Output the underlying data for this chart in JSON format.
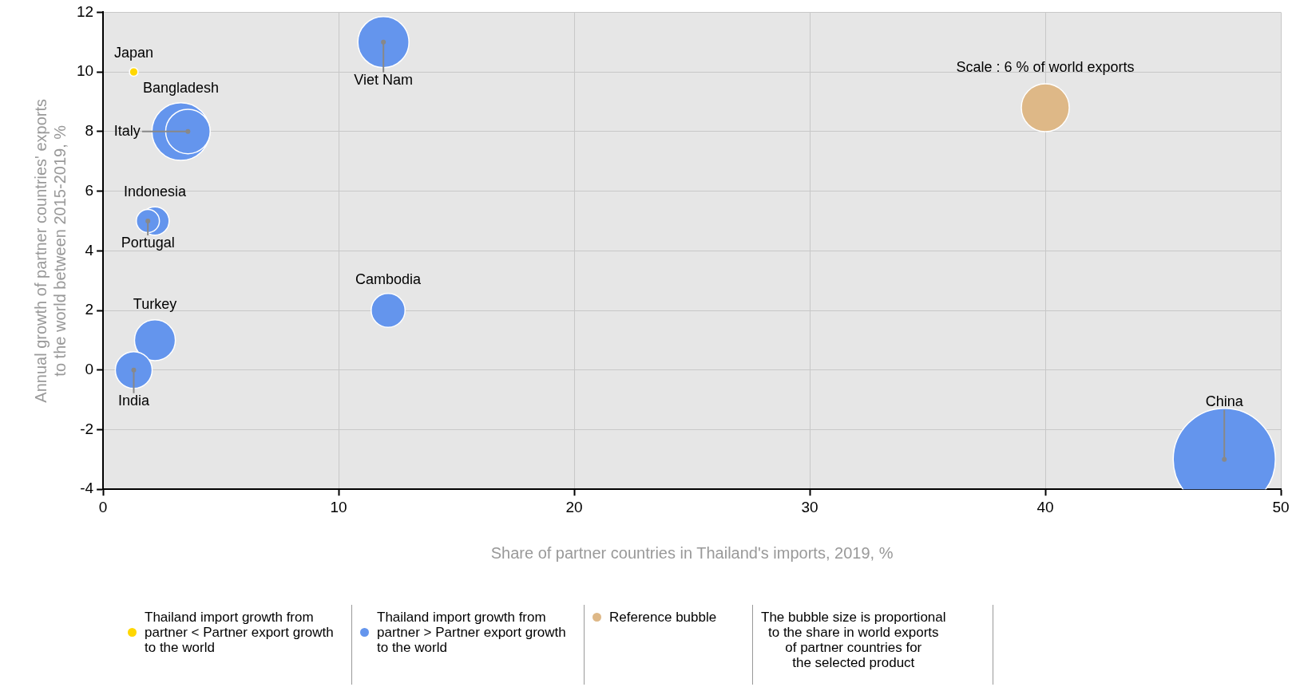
{
  "chart_data": {
    "type": "bubble",
    "xlabel": "Share of partner countries in Thailand's imports, 2019, %",
    "ylabel": "Annual growth of partner countries' exports\nto the world between 2015-2019, %",
    "xlim": [
      0,
      50
    ],
    "xticks": [
      0,
      10,
      20,
      30,
      40,
      50
    ],
    "ylim": [
      -4,
      12
    ],
    "yticks": [
      -4,
      -2,
      0,
      2,
      4,
      6,
      8,
      10,
      12
    ],
    "grid": true,
    "legend": "bottom",
    "series": [
      {
        "name": "Thailand import growth from partner < Partner export growth to the world",
        "color": "#ffd700",
        "x": [
          1.3
        ],
        "values": [
          10
        ],
        "sizes": [
          0.007
        ]
      },
      {
        "name": "Thailand import growth from partner > Partner export growth to the world",
        "color": "#6495ed",
        "x": [
          3.3,
          3.6,
          2.2,
          1.9,
          11.9,
          12.1,
          2.2,
          1.3,
          47.6
        ],
        "values": [
          8,
          8,
          5,
          5,
          11,
          2,
          1,
          0,
          -3
        ],
        "sizes": [
          0.32,
          0.19,
          0.077,
          0.051,
          0.25,
          0.11,
          0.16,
          0.13,
          1
        ]
      },
      {
        "name": "Reference bubble",
        "color": "#deb887",
        "x": [
          40
        ],
        "values": [
          8.8
        ],
        "sizes": [
          0.22
        ]
      }
    ],
    "annotations": [
      {
        "text": "Japan",
        "x": 1.3,
        "y": 10
      },
      {
        "text": "Bangladesh",
        "x": 3.3,
        "y": 8
      },
      {
        "text": "Italy",
        "x": 3.6,
        "y": 8
      },
      {
        "text": "Indonesia",
        "x": 2.2,
        "y": 5
      },
      {
        "text": "Portugal",
        "x": 1.9,
        "y": 5
      },
      {
        "text": "Viet Nam",
        "x": 11.9,
        "y": 11
      },
      {
        "text": "Cambodia",
        "x": 12.1,
        "y": 2
      },
      {
        "text": "Turkey",
        "x": 2.2,
        "y": 1
      },
      {
        "text": "India",
        "x": 1.3,
        "y": 0
      },
      {
        "text": "China",
        "x": 47.6,
        "y": -3
      },
      {
        "text": "Scale : 6 % of world exports",
        "x": 40,
        "y": 8.8
      },
      "The bubble size is proportional\nto the share in world exports\nof partner countries for\nthe selected product"
    ]
  }
}
